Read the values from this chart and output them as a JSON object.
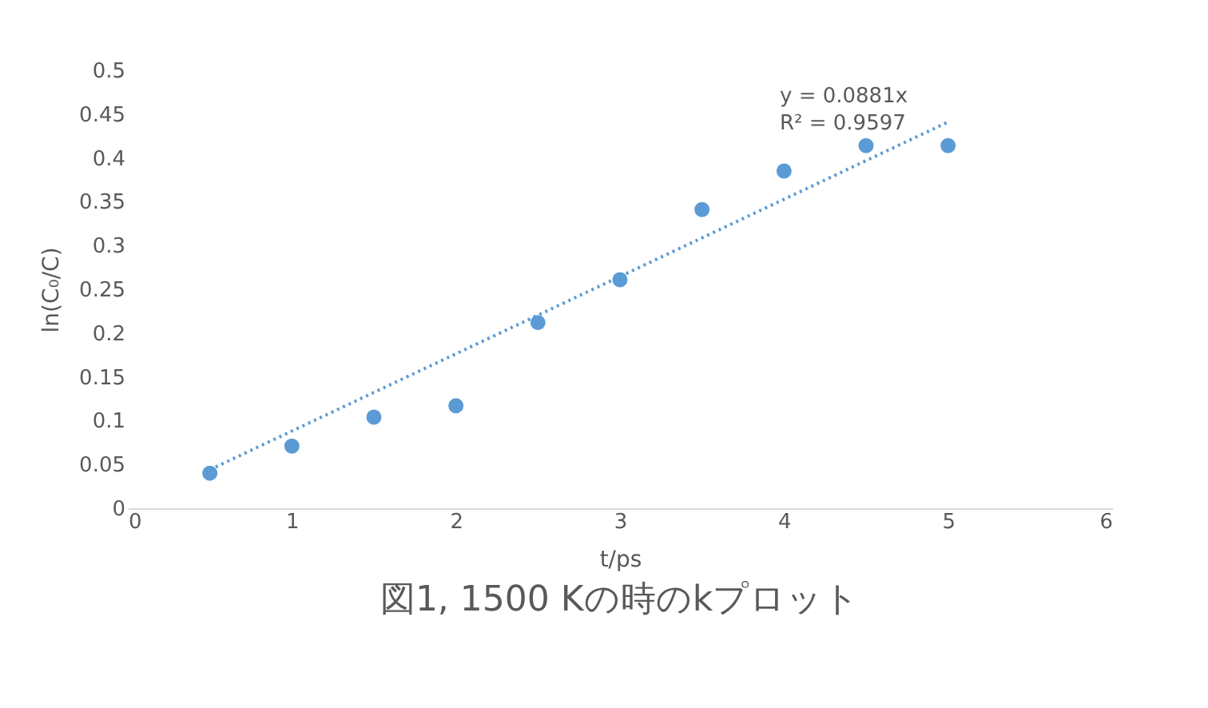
{
  "chart_data": {
    "type": "scatter",
    "title": "図1, 1500 Kの時のkプロット",
    "xlabel": "t/ps",
    "ylabel": "ln(C₀/C)",
    "xlim": [
      0,
      6
    ],
    "xticks": [
      0,
      1,
      2,
      3,
      4,
      5,
      6
    ],
    "ylim": [
      0,
      0.5
    ],
    "yticks": [
      0,
      0.05,
      0.1,
      0.15,
      0.2,
      0.25,
      0.3,
      0.35,
      0.4,
      0.45,
      0.5
    ],
    "grid": false,
    "marker": "circle",
    "series": [
      {
        "color": "#5b9bd5",
        "x": [
          0.5,
          1,
          1.5,
          2,
          2.5,
          3,
          3.5,
          4,
          4.5,
          5
        ],
        "values": [
          0.04,
          0.071,
          0.104,
          0.117,
          0.212,
          0.261,
          0.341,
          0.385,
          0.414,
          0.414
        ]
      },
      {
        "type": "line",
        "line_style": "dotted",
        "marker": "none",
        "color": "#5b9bd5",
        "x": [
          0.5,
          5
        ],
        "values": [
          0.044,
          0.441
        ]
      }
    ],
    "annotations": [
      "y = 0.0881x",
      "R² = 0.9597"
    ]
  }
}
